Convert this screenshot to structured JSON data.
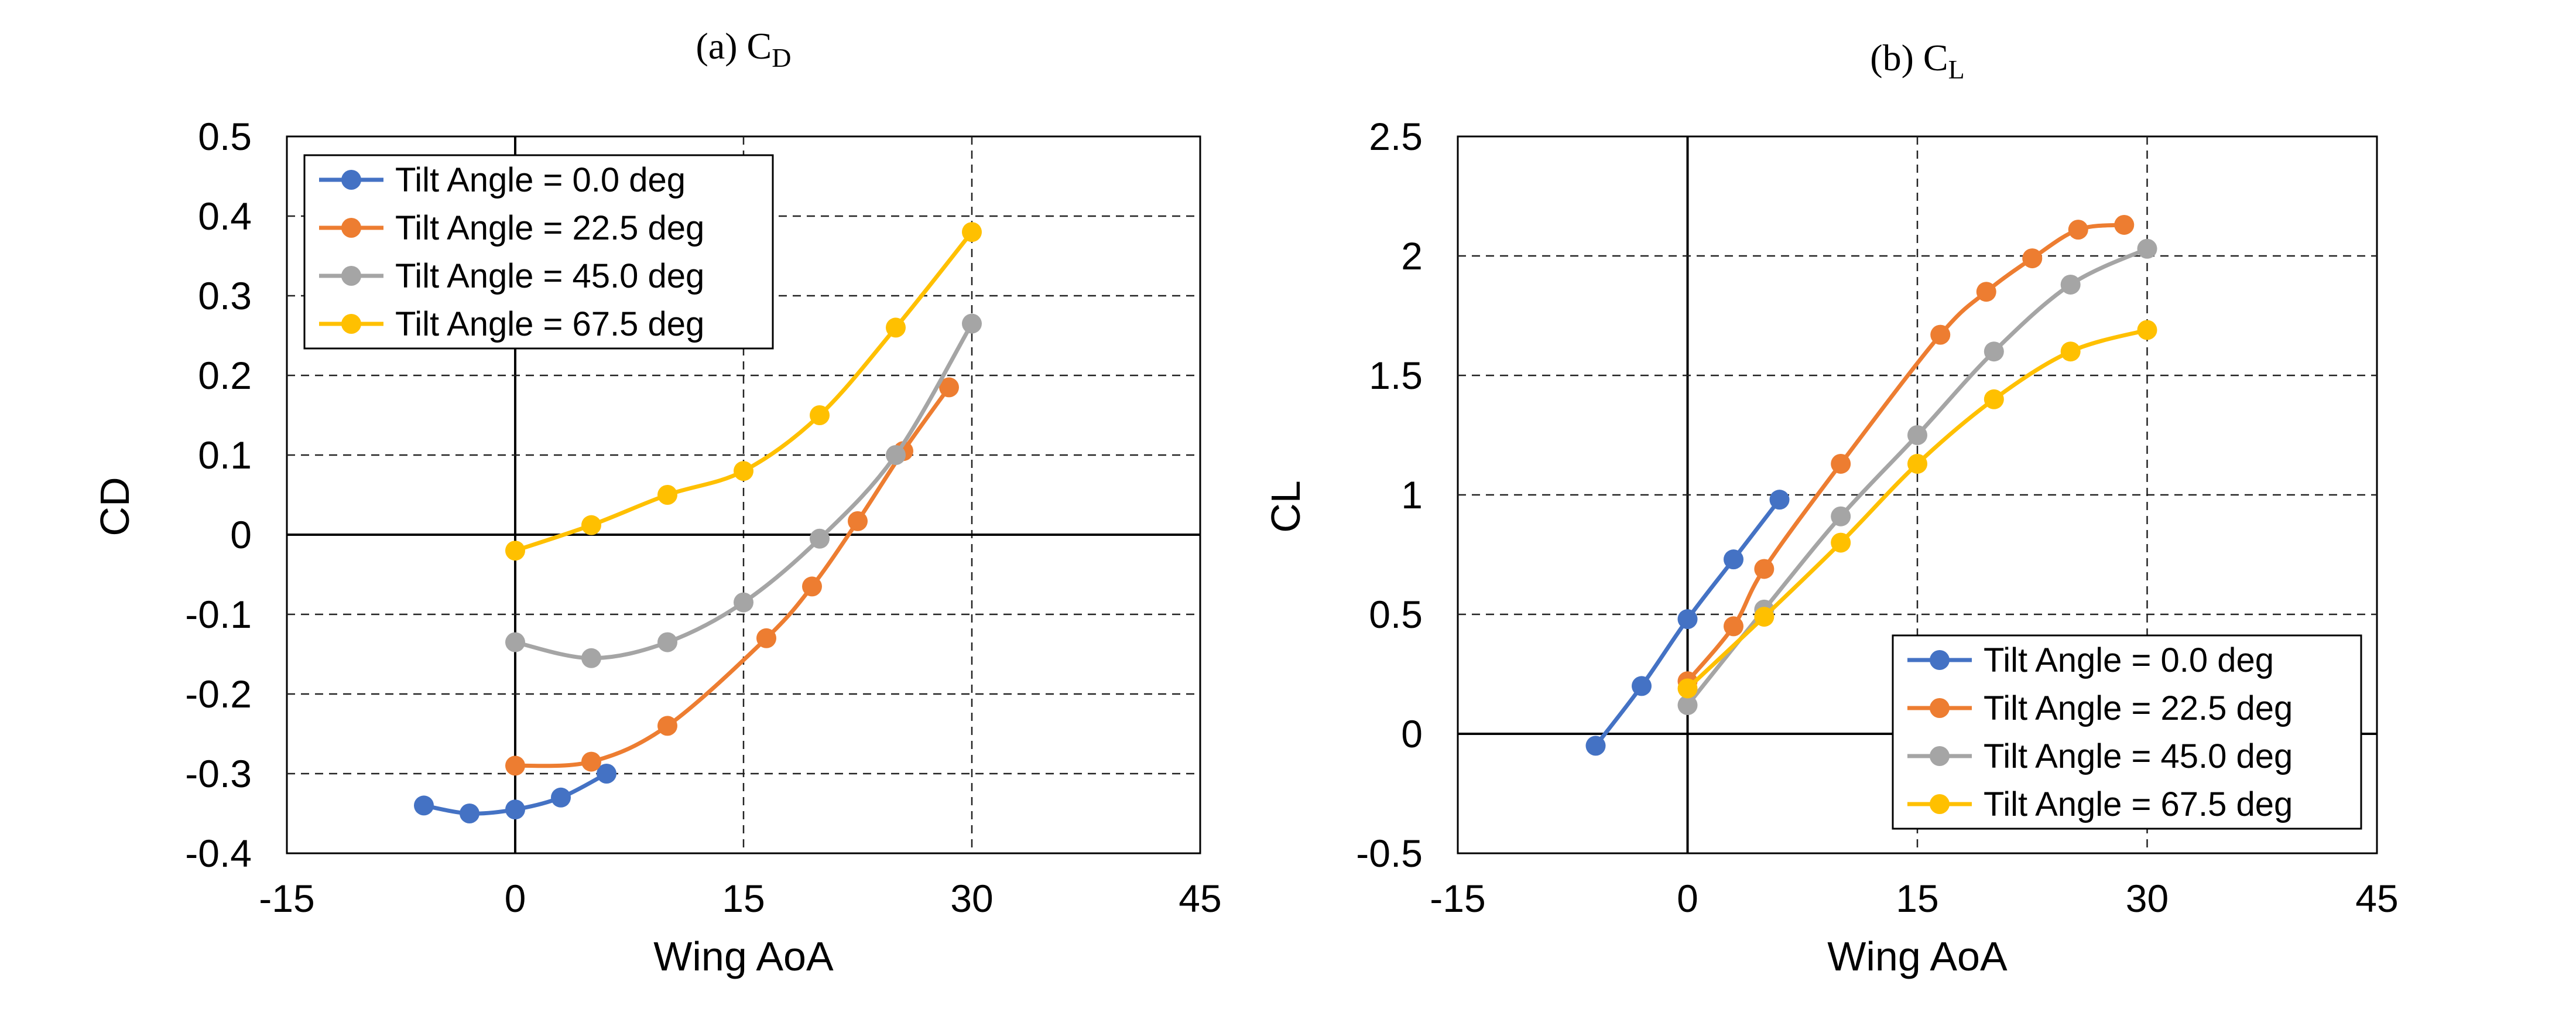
{
  "chart_data": [
    {
      "type": "line",
      "panel_label": "(a) C",
      "panel_sub": "D",
      "xlabel": "Wing AoA",
      "ylabel": "CD",
      "xlim": [
        -15,
        45
      ],
      "ylim": [
        -0.4,
        0.5
      ],
      "x_ticks": [
        -15,
        0,
        15,
        30,
        45
      ],
      "y_ticks": [
        -0.4,
        -0.3,
        -0.2,
        -0.1,
        0,
        0.1,
        0.2,
        0.3,
        0.4,
        0.5
      ],
      "x_tick_labels": [
        "-15",
        "0",
        "15",
        "30",
        "45"
      ],
      "y_tick_labels": [
        "-0.4",
        "-0.3",
        "-0.2",
        "-0.1",
        "0",
        "0.1",
        "0.2",
        "0.3",
        "0.4",
        "0.5"
      ],
      "grid": "dashed",
      "legend_position": "top-left",
      "series": [
        {
          "name": "Tilt Angle = 0.0 deg",
          "color": "#4472C4",
          "x": [
            -6,
            -3,
            0,
            3,
            6
          ],
          "y": [
            -0.34,
            -0.35,
            -0.345,
            -0.33,
            -0.3
          ]
        },
        {
          "name": "Tilt Angle = 22.5 deg",
          "color": "#ED7D31",
          "x": [
            0,
            5,
            10,
            16.5,
            19.5,
            22.5,
            25.5,
            28.5
          ],
          "y": [
            -0.29,
            -0.285,
            -0.24,
            -0.13,
            -0.065,
            0.017,
            0.105,
            0.185
          ]
        },
        {
          "name": "Tilt Angle = 45.0 deg",
          "color": "#A5A5A5",
          "x": [
            0,
            5,
            10,
            15,
            20,
            25,
            30
          ],
          "y": [
            -0.135,
            -0.155,
            -0.135,
            -0.085,
            -0.005,
            0.1,
            0.265
          ]
        },
        {
          "name": "Tilt Angle = 67.5 deg",
          "color": "#FFC000",
          "x": [
            0,
            5,
            10,
            15,
            20,
            25,
            30
          ],
          "y": [
            -0.02,
            0.012,
            0.05,
            0.08,
            0.15,
            0.26,
            0.38
          ]
        }
      ]
    },
    {
      "type": "line",
      "panel_label": "(b) C",
      "panel_sub": "L",
      "xlabel": "Wing AoA",
      "ylabel": "CL",
      "xlim": [
        -15,
        45
      ],
      "ylim": [
        -0.5,
        2.5
      ],
      "x_ticks": [
        -15,
        0,
        15,
        30,
        45
      ],
      "y_ticks": [
        -0.5,
        0,
        0.5,
        1,
        1.5,
        2,
        2.5
      ],
      "x_tick_labels": [
        "-15",
        "0",
        "15",
        "30",
        "45"
      ],
      "y_tick_labels": [
        "-0.5",
        "0",
        "0.5",
        "1",
        "1.5",
        "2",
        "2.5"
      ],
      "grid": "dashed",
      "legend_position": "bottom-right",
      "series": [
        {
          "name": "Tilt Angle = 0.0 deg",
          "color": "#4472C4",
          "x": [
            -6,
            -3,
            0,
            3,
            6
          ],
          "y": [
            -0.05,
            0.2,
            0.48,
            0.73,
            0.98
          ]
        },
        {
          "name": "Tilt Angle = 22.5 deg",
          "color": "#ED7D31",
          "x": [
            0,
            3,
            5,
            10,
            16.5,
            19.5,
            22.5,
            25.5,
            28.5
          ],
          "y": [
            0.22,
            0.45,
            0.69,
            1.13,
            1.67,
            1.85,
            1.99,
            2.11,
            2.13
          ]
        },
        {
          "name": "Tilt Angle = 45.0 deg",
          "color": "#A5A5A5",
          "x": [
            0,
            5,
            10,
            15,
            20,
            25,
            30
          ],
          "y": [
            0.12,
            0.52,
            0.91,
            1.25,
            1.6,
            1.88,
            2.03
          ]
        },
        {
          "name": "Tilt Angle = 67.5 deg",
          "color": "#FFC000",
          "x": [
            0,
            5,
            10,
            15,
            20,
            25,
            30
          ],
          "y": [
            0.19,
            0.49,
            0.8,
            1.13,
            1.4,
            1.6,
            1.69
          ]
        }
      ]
    }
  ]
}
